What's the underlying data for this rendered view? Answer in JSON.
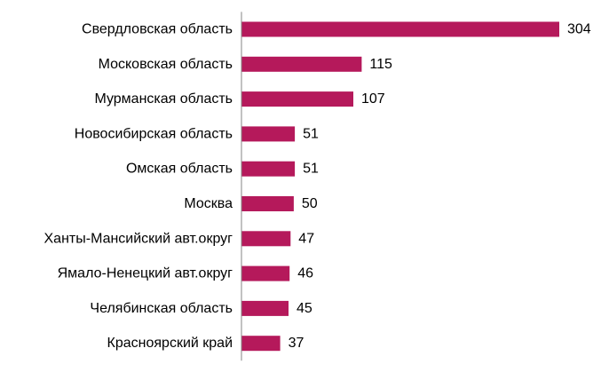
{
  "chart_data": {
    "type": "bar",
    "orientation": "horizontal",
    "title": "",
    "xlabel": "",
    "ylabel": "",
    "categories": [
      "Свердловская область",
      "Московская область",
      "Мурманская область",
      "Новосибирская область",
      "Омская область",
      "Москва",
      "Ханты-Мансийский авт.округ",
      "Ямало-Ненецкий авт.округ",
      "Челябинская область",
      "Красноярский край"
    ],
    "values": [
      304,
      115,
      107,
      51,
      51,
      50,
      47,
      46,
      45,
      37
    ],
    "xlim": [
      0,
      304
    ],
    "grid": false,
    "legend": "none",
    "bar_color": "#b5195b",
    "axis_color": "#868686",
    "data_labels": true
  }
}
